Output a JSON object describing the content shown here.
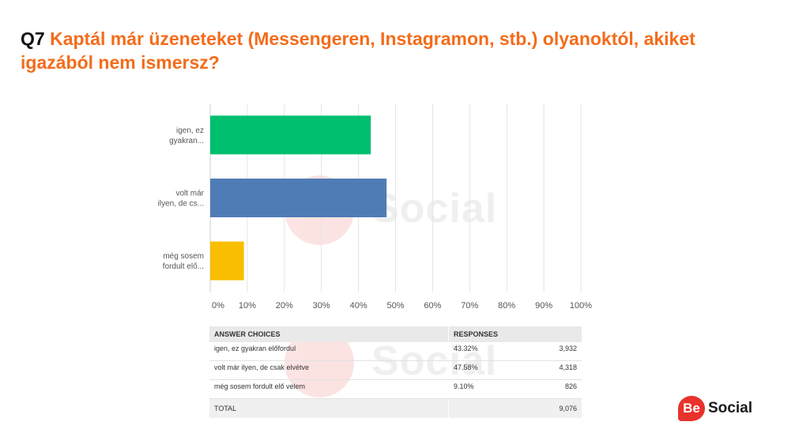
{
  "header": {
    "question_number": "Q7",
    "question_text": "Kaptál már üzeneteket (Messengeren, Instagramon, stb.) olyanoktól, akiket igazából nem ismersz?"
  },
  "watermark": {
    "badge": "Be",
    "text": "Social"
  },
  "chart_data": {
    "type": "bar",
    "orientation": "horizontal",
    "categories": [
      "igen, ez gyakran...",
      "volt már ilyen, de cs...",
      "még sosem fordult elő..."
    ],
    "category_lines": [
      [
        "igen, ez",
        "gyakran..."
      ],
      [
        "volt már",
        "ilyen, de cs..."
      ],
      [
        "még sosem",
        "fordult elő..."
      ]
    ],
    "values": [
      43.32,
      47.58,
      9.1
    ],
    "colors": [
      "#00bf6f",
      "#507cb6",
      "#f9be00"
    ],
    "xlim": [
      0,
      100
    ],
    "x_ticks": [
      "0%",
      "10%",
      "20%",
      "30%",
      "40%",
      "50%",
      "60%",
      "70%",
      "80%",
      "90%",
      "100%"
    ],
    "grid": true
  },
  "table": {
    "headers": {
      "choice": "ANSWER CHOICES",
      "responses": "RESPONSES"
    },
    "rows": [
      {
        "choice": "igen, ez gyakran előfordul",
        "percent": "43.32%",
        "count": "3,932"
      },
      {
        "choice": "volt már ilyen, de csak elvétve",
        "percent": "47.58%",
        "count": "4,318"
      },
      {
        "choice": "még sosem fordult elő velem",
        "percent": "9.10%",
        "count": "826"
      }
    ],
    "total": {
      "label": "TOTAL",
      "count": "9,076"
    }
  },
  "logo": {
    "badge": "Be",
    "text": "Social"
  }
}
